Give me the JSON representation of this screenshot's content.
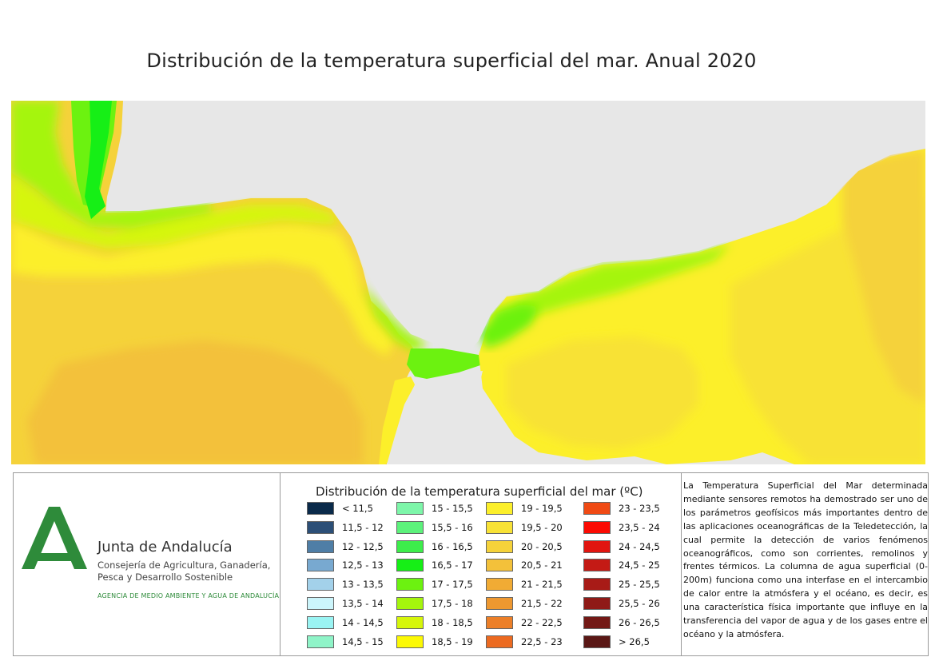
{
  "title": "Distribución de la temperatura superficial del mar. Anual 2020",
  "colors": {
    "land": "#e7e7e7",
    "brand_green": "#2e8b3a"
  },
  "organization": {
    "name": "Junta de Andalucía",
    "department": "Consejería de Agricultura, Ganadería, Pesca y Desarrollo Sostenible",
    "agency": "AGENCIA DE MEDIO AMBIENTE Y AGUA DE ANDALUCÍA",
    "logo_icon": "junta-andalucia-logo-icon"
  },
  "legend": {
    "title": "Distribución de la temperatura superficial del mar (ºC)",
    "columns": [
      [
        {
          "label": "< 11,5",
          "color": "#0a2a4a"
        },
        {
          "label": "11,5 - 12",
          "color": "#2c4f77"
        },
        {
          "label": "12 - 12,5",
          "color": "#4f7ea6"
        },
        {
          "label": "12,5 - 13",
          "color": "#78a9d0"
        },
        {
          "label": "13 - 13,5",
          "color": "#a3d1ea"
        },
        {
          "label": "13,5 - 14",
          "color": "#ccf5fb"
        },
        {
          "label": "14 - 14,5",
          "color": "#9af4f3"
        },
        {
          "label": "14,5 - 15",
          "color": "#8ff4c8"
        }
      ],
      [
        {
          "label": "15 - 15,5",
          "color": "#7df6a9"
        },
        {
          "label": "15,5 - 16",
          "color": "#5cf27b"
        },
        {
          "label": "16 - 16,5",
          "color": "#3ded4b"
        },
        {
          "label": "16,5 - 17",
          "color": "#16ef16"
        },
        {
          "label": "17 - 17,5",
          "color": "#6cf210"
        },
        {
          "label": "17,5 - 18",
          "color": "#a5f50d"
        },
        {
          "label": "18 - 18,5",
          "color": "#d6f60a"
        },
        {
          "label": "18,5 - 19",
          "color": "#fcf904"
        }
      ],
      [
        {
          "label": "19 - 19,5",
          "color": "#fcef2a"
        },
        {
          "label": "19,5 - 20",
          "color": "#f8e236"
        },
        {
          "label": "20 - 20,5",
          "color": "#f5d23a"
        },
        {
          "label": "20,5 - 21",
          "color": "#f3c13a"
        },
        {
          "label": "21 - 21,5",
          "color": "#f1ab34"
        },
        {
          "label": "21,5 - 22",
          "color": "#ee9830"
        },
        {
          "label": "22 - 22,5",
          "color": "#ec7f28"
        },
        {
          "label": "22,5 - 23",
          "color": "#ec6a20"
        }
      ],
      [
        {
          "label": "23 - 23,5",
          "color": "#f04a14"
        },
        {
          "label": "23,5 - 24",
          "color": "#fb0a02"
        },
        {
          "label": "24 - 24,5",
          "color": "#e11510"
        },
        {
          "label": "24,5 - 25",
          "color": "#c41a15"
        },
        {
          "label": "25 - 25,5",
          "color": "#a81b17"
        },
        {
          "label": "25,5 - 26",
          "color": "#8f1a17"
        },
        {
          "label": "26 - 26,5",
          "color": "#731916"
        },
        {
          "label": "> 26,5",
          "color": "#5a1715"
        }
      ]
    ]
  },
  "description": "La Temperatura Superficial del Mar determinada mediante sensores remotos ha demostrado ser uno de los parámetros geofísicos más importantes dentro de las aplicaciones oceanográficas de la Teledetección, la cual permite la detección de varios fenómenos oceanográficos, como son corrientes, remolinos y frentes térmicos. La columna de agua superficial (0-200m) funciona como una interfase en el intercambio de calor entre la atmósfera y el océano, es decir, es una característica física importante que influye en la transferencia del vapor de agua y de los gases entre el océano y la atmósfera."
}
